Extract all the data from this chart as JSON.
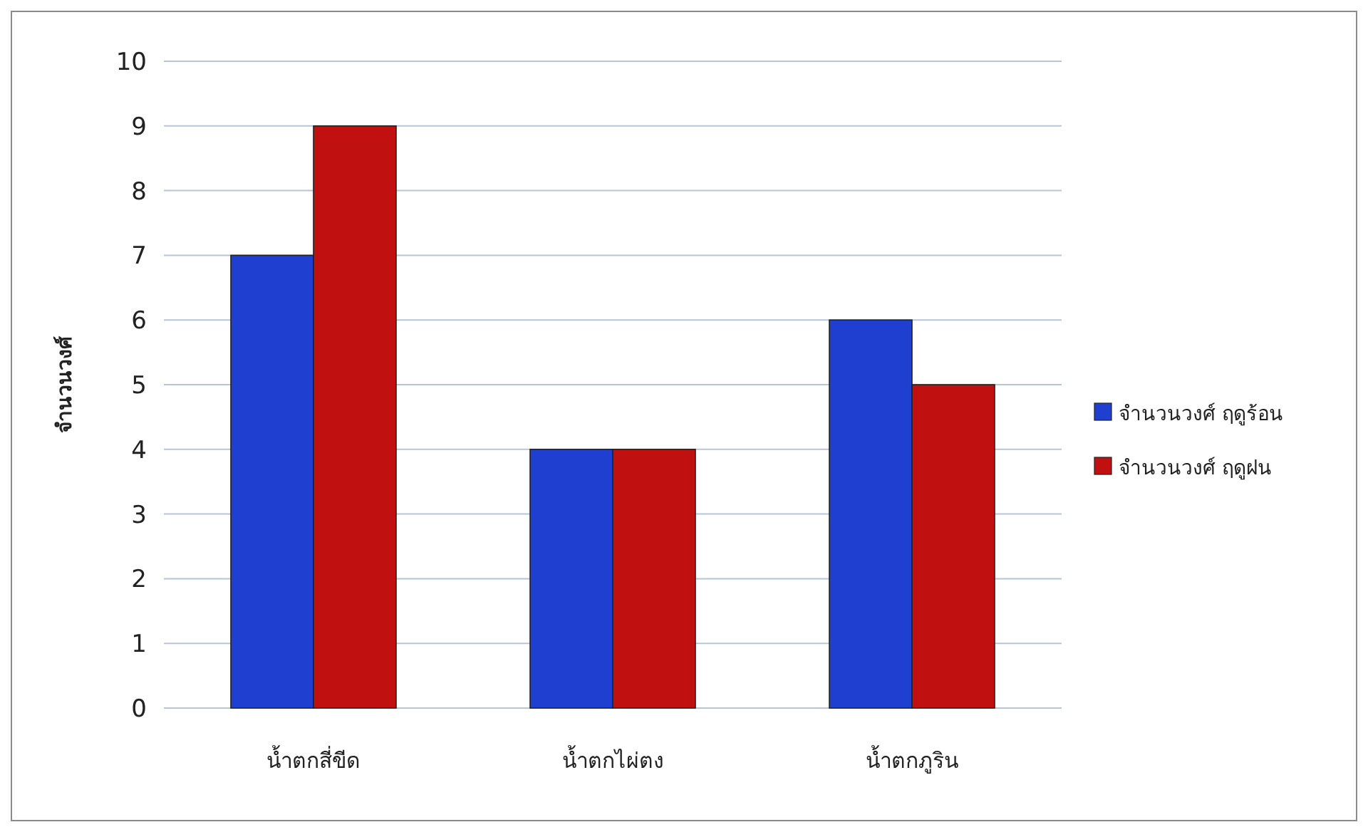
{
  "chart_data": {
    "type": "bar",
    "ylabel": "จำนวนวงศ์",
    "categories": [
      "น้ำตกสี่ขีด",
      "น้ำตกไผ่ตง",
      "น้ำตกภูริน"
    ],
    "series": [
      {
        "name": "จำนวนวงศ์ ฤดูร้อน",
        "color": "#1f3fd0",
        "values": [
          7,
          4,
          6
        ]
      },
      {
        "name": "จำนวนวงศ์ ฤดูฝน",
        "color": "#c01010",
        "values": [
          9,
          4,
          5
        ]
      }
    ],
    "ylim": [
      0,
      10
    ],
    "yticks": [
      0,
      1,
      2,
      3,
      4,
      5,
      6,
      7,
      8,
      9,
      10
    ],
    "grid": "y",
    "legend": "right"
  }
}
